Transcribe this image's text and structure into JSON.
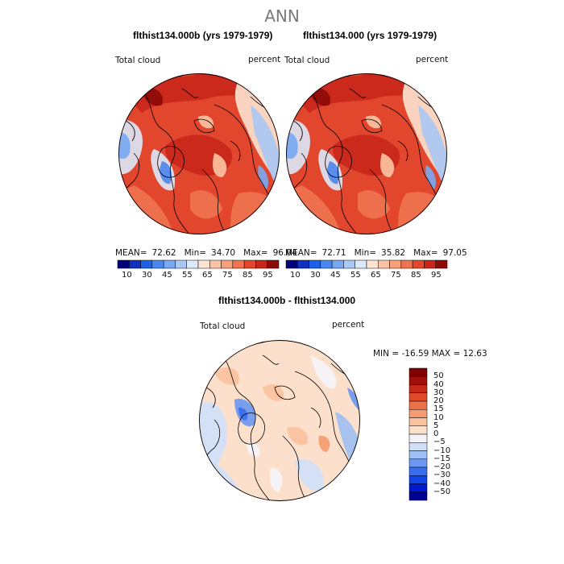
{
  "page_title": "ANN",
  "colors": {
    "land_outline": "#000000",
    "circle_outline": "#000000",
    "abs_palette": [
      "#00007a",
      "#1030c0",
      "#2060e6",
      "#4a86f0",
      "#79a8f2",
      "#a9c8f4",
      "#dde8f8",
      "#fde3d2",
      "#fcc4a4",
      "#f7a07a",
      "#ef7350",
      "#e2472e",
      "#c8261a",
      "#8c0a08"
    ],
    "diff_palette": [
      "#000090",
      "#0018d0",
      "#1044e8",
      "#3a6ef0",
      "#6e98f0",
      "#a0bff2",
      "#cfe0f8",
      "#f4f4f8",
      "#fde0cc",
      "#fbc2a0",
      "#f59c72",
      "#ec7048",
      "#de4a2a",
      "#c8281a",
      "#a01008",
      "#800000"
    ]
  },
  "chart_data": [
    {
      "type": "heatmap",
      "title": "flthist134.000b (yrs 1979-1979)",
      "left_label": "Total cloud",
      "right_label": "percent",
      "stats": {
        "mean_label": "MEAN=",
        "mean": "72.62",
        "min_label": "Min=",
        "min": "34.70",
        "max_label": "Max=",
        "max": "96.04"
      },
      "colorbar_ticks": [
        "10",
        "30",
        "45",
        "55",
        "65",
        "75",
        "85",
        "95"
      ],
      "projection": "north-polar stereographic"
    },
    {
      "type": "heatmap",
      "title": "flthist134.000 (yrs 1979-1979)",
      "left_label": "Total cloud",
      "right_label": "percent",
      "stats": {
        "mean_label": "MEAN=",
        "mean": "72.71",
        "min_label": "Min=",
        "min": "35.82",
        "max_label": "Max=",
        "max": "97.05"
      },
      "colorbar_ticks": [
        "10",
        "30",
        "45",
        "55",
        "65",
        "75",
        "85",
        "95"
      ],
      "projection": "north-polar stereographic"
    },
    {
      "type": "heatmap",
      "title": "flthist134.000b - flthist134.000",
      "left_label": "Total cloud",
      "right_label": "percent",
      "minmax_text": "MIN = -16.59 MAX =  12.63",
      "colorbar_ticks": [
        "50",
        "40",
        "30",
        "20",
        "15",
        "10",
        "5",
        "0",
        "−5",
        "−10",
        "−15",
        "−20",
        "−30",
        "−40",
        "−50"
      ],
      "projection": "north-polar stereographic"
    }
  ]
}
